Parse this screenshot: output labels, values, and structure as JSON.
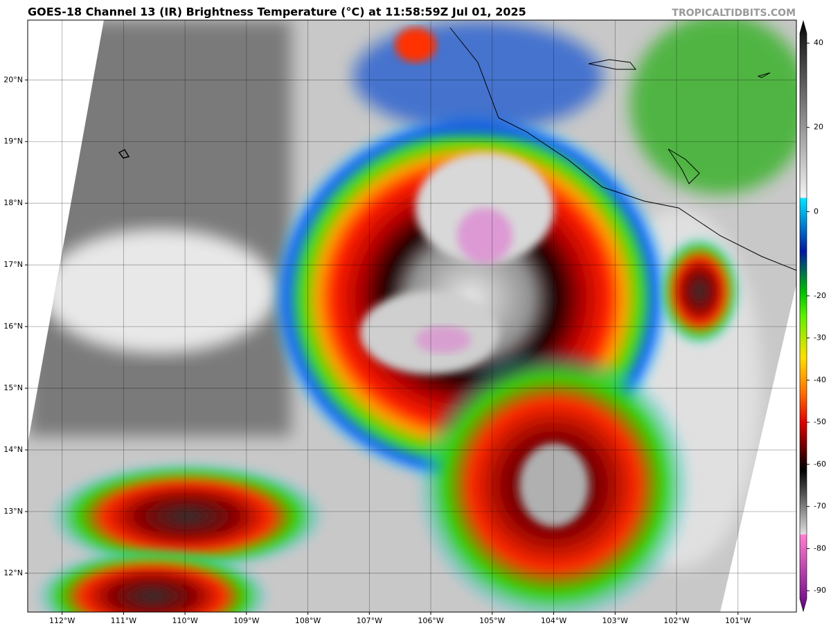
{
  "header": {
    "title": "GOES-18 Channel 13 (IR) Brightness Temperature (°C) at 11:58:59Z Jul 01, 2025",
    "credit": "TROPICALTIDBITS.COM"
  },
  "map": {
    "lon_range": [
      -112.56,
      -100.05
    ],
    "lat_range": [
      11.37,
      20.97
    ],
    "lat_ticks": [
      {
        "value": 12,
        "label": "12°N"
      },
      {
        "value": 13,
        "label": "13°N"
      },
      {
        "value": 14,
        "label": "14°N"
      },
      {
        "value": 15,
        "label": "15°N"
      },
      {
        "value": 16,
        "label": "16°N"
      },
      {
        "value": 17,
        "label": "17°N"
      },
      {
        "value": 18,
        "label": "18°N"
      },
      {
        "value": 19,
        "label": "19°N"
      },
      {
        "value": 20,
        "label": "20°N"
      }
    ],
    "lon_ticks": [
      {
        "value": -112,
        "label": "112°W"
      },
      {
        "value": -111,
        "label": "111°W"
      },
      {
        "value": -110,
        "label": "110°W"
      },
      {
        "value": -109,
        "label": "109°W"
      },
      {
        "value": -108,
        "label": "108°W"
      },
      {
        "value": -107,
        "label": "107°W"
      },
      {
        "value": -106,
        "label": "106°W"
      },
      {
        "value": -105,
        "label": "105°W"
      },
      {
        "value": -104,
        "label": "104°W"
      },
      {
        "value": -103,
        "label": "103°W"
      },
      {
        "value": -102,
        "label": "102°W"
      },
      {
        "value": -101,
        "label": "101°W"
      }
    ]
  },
  "colorbar": {
    "lim": [
      45.3,
      -94.9
    ],
    "ticks": [
      40,
      20,
      0,
      -20,
      -30,
      -40,
      -50,
      -60,
      -70,
      -80,
      -90
    ]
  }
}
